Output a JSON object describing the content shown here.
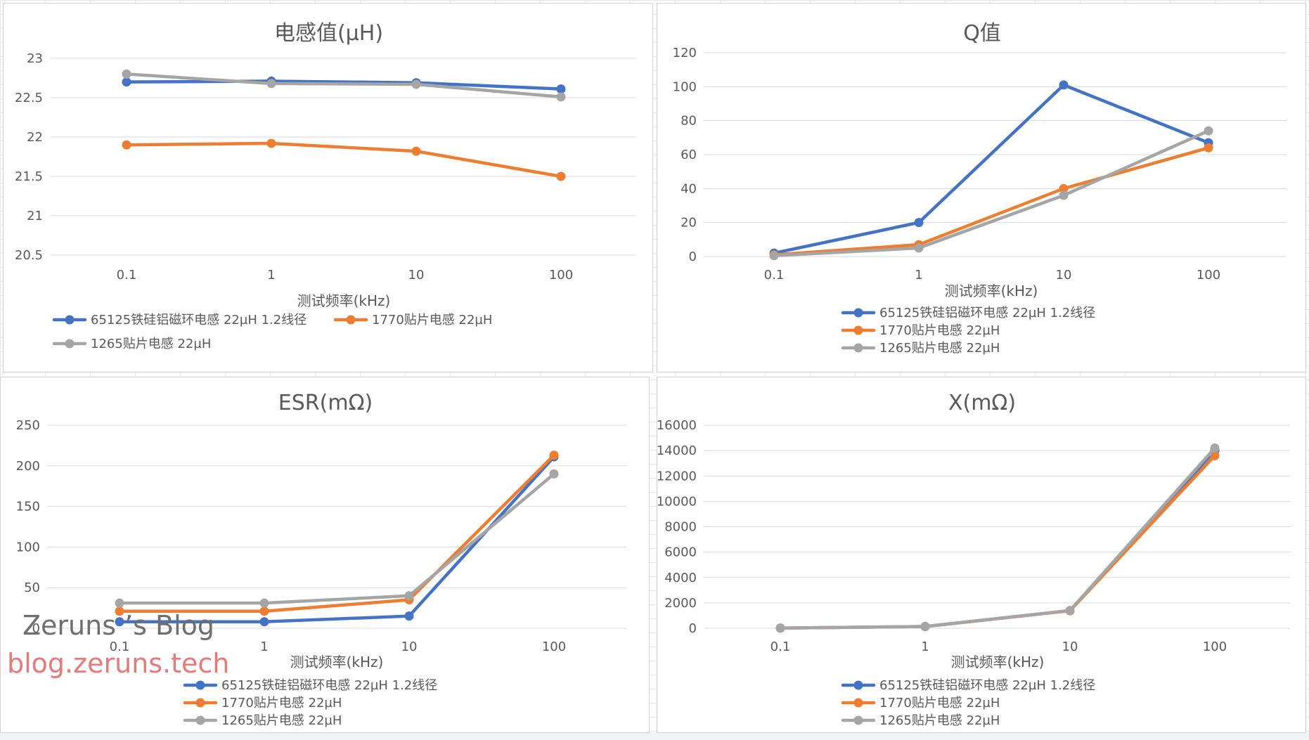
{
  "legend": {
    "series_names": [
      "65125铁硅铝磁环电感 22µH 1.2线径",
      "1770贴片电感 22µH",
      "1265贴片电感 22µH"
    ]
  },
  "colors": {
    "series": [
      "#4472c4",
      "#ed7d31",
      "#a5a5a5"
    ]
  },
  "watermark": {
    "name": "Zeruns ’s Blog",
    "url": "blog.zeruns.tech"
  },
  "chart_data": [
    {
      "type": "line",
      "title": "电感值(µH)",
      "xlabel": "测试频率(kHz)",
      "ylabel": "",
      "categories": [
        "0.1",
        "1",
        "10",
        "100"
      ],
      "ylim": [
        20.5,
        23
      ],
      "yticks": [
        "20.5",
        "21",
        "21.5",
        "22",
        "22.5",
        "23"
      ],
      "legend_position": "bottom",
      "series": [
        {
          "name": "65125铁硅铝磁环电感 22µH 1.2线径",
          "values": [
            22.7,
            22.71,
            22.69,
            22.61
          ]
        },
        {
          "name": "1770贴片电感 22µH",
          "values": [
            21.9,
            21.92,
            21.82,
            21.5
          ]
        },
        {
          "name": "1265贴片电感 22µH",
          "values": [
            22.8,
            22.68,
            22.67,
            22.51
          ]
        }
      ]
    },
    {
      "type": "line",
      "title": "Q值",
      "xlabel": "测试频率(kHz)",
      "ylabel": "",
      "categories": [
        "0.1",
        "1",
        "10",
        "100"
      ],
      "ylim": [
        0,
        120
      ],
      "yticks": [
        "0",
        "20",
        "40",
        "60",
        "80",
        "100",
        "120"
      ],
      "legend_position": "bottom",
      "series": [
        {
          "name": "65125铁硅铝磁环电感 22µH 1.2线径",
          "values": [
            2,
            20,
            101,
            67
          ]
        },
        {
          "name": "1770贴片电感 22µH",
          "values": [
            1,
            7,
            40,
            64
          ]
        },
        {
          "name": "1265贴片电感 22µH",
          "values": [
            0.5,
            5,
            36,
            74
          ]
        }
      ]
    },
    {
      "type": "line",
      "title": "ESR(mΩ)",
      "xlabel": "测试频率(kHz)",
      "ylabel": "",
      "categories": [
        "0.1",
        "1",
        "10",
        "100"
      ],
      "ylim": [
        0,
        250
      ],
      "yticks": [
        "0",
        "50",
        "100",
        "150",
        "200",
        "250"
      ],
      "legend_position": "bottom",
      "series": [
        {
          "name": "65125铁硅铝磁环电感 22µH 1.2线径",
          "values": [
            8,
            8,
            15,
            211
          ]
        },
        {
          "name": "1770贴片电感 22µH",
          "values": [
            21,
            21,
            35,
            213
          ]
        },
        {
          "name": "1265贴片电感 22µH",
          "values": [
            31,
            31,
            40,
            190
          ]
        }
      ]
    },
    {
      "type": "line",
      "title": "X(mΩ)",
      "xlabel": "测试频率(kHz)",
      "ylabel": "",
      "categories": [
        "0.1",
        "1",
        "10",
        "100"
      ],
      "ylim": [
        0,
        16000
      ],
      "yticks": [
        "0",
        "2000",
        "4000",
        "6000",
        "8000",
        "10000",
        "12000",
        "14000",
        "16000"
      ],
      "legend_position": "bottom",
      "series": [
        {
          "name": "65125铁硅铝磁环电感 22µH 1.2线径",
          "values": [
            14,
            140,
            1390,
            14000
          ]
        },
        {
          "name": "1770贴片电感 22µH",
          "values": [
            14,
            140,
            1380,
            13600
          ]
        },
        {
          "name": "1265贴片电感 22µH",
          "values": [
            14,
            140,
            1400,
            14200
          ]
        }
      ]
    }
  ]
}
